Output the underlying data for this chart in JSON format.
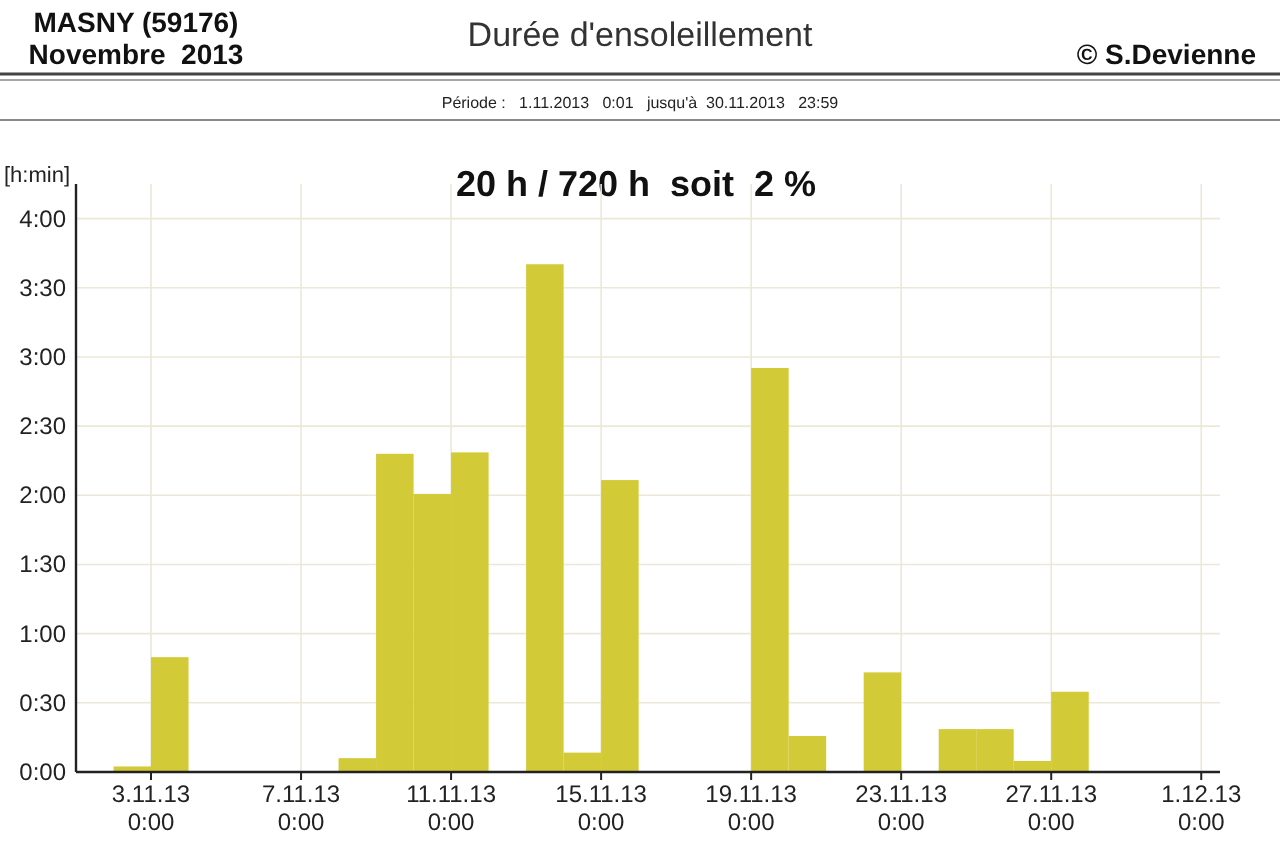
{
  "chart_data": {
    "type": "bar",
    "title": "Durée d'ensoleillement",
    "subtitle": "Période :   1.11.2013   0:01   jusqu'à  30.11.2013   23:59",
    "ylabel": "[h:min]",
    "annotations": [
      "MASNY (59176)",
      "Novembre  2013",
      "© S.Devienne",
      "20 h / 720 h  soit  2 %"
    ],
    "x": [
      "2013-11-01T12:00",
      "2013-11-02T12:00",
      "2013-11-03T12:00",
      "2013-11-04T12:00",
      "2013-11-05T12:00",
      "2013-11-06T12:00",
      "2013-11-07T12:00",
      "2013-11-08T12:00",
      "2013-11-09T12:00",
      "2013-11-10T12:00",
      "2013-11-11T12:00",
      "2013-11-12T12:00",
      "2013-11-13T12:00",
      "2013-11-14T12:00",
      "2013-11-15T12:00",
      "2013-11-16T12:00",
      "2013-11-17T12:00",
      "2013-11-18T12:00",
      "2013-11-19T12:00",
      "2013-11-20T12:00",
      "2013-11-21T12:00",
      "2013-11-22T12:00",
      "2013-11-23T12:00",
      "2013-11-24T12:00",
      "2013-11-25T12:00",
      "2013-11-26T12:00",
      "2013-11-27T12:00",
      "2013-11-28T12:00",
      "2013-11-29T12:00",
      "2013-11-30T12:00"
    ],
    "values": [
      0,
      0.04,
      0.83,
      0,
      0,
      0,
      0,
      0.1,
      2.3,
      2.01,
      2.31,
      0,
      3.67,
      0.14,
      2.11,
      0,
      0,
      0,
      2.92,
      0.26,
      0,
      0.72,
      0,
      0.31,
      0.31,
      0.08,
      0.58,
      0,
      0,
      0
    ],
    "color": "#d3ca38",
    "xlim": [
      "2013-11-01",
      "2013-12-01T12:00"
    ],
    "xticks": [
      {
        "value": "2013-11-03",
        "label": "3.11.13\n0:00"
      },
      {
        "value": "2013-11-07",
        "label": "7.11.13\n0:00"
      },
      {
        "value": "2013-11-11",
        "label": "11.11.13\n0:00"
      },
      {
        "value": "2013-11-15",
        "label": "15.11.13\n0:00"
      },
      {
        "value": "2013-11-19",
        "label": "19.11.13\n0:00"
      },
      {
        "value": "2013-11-23",
        "label": "23.11.13\n0:00"
      },
      {
        "value": "2013-11-27",
        "label": "27.11.13\n0:00"
      },
      {
        "value": "2013-12-01",
        "label": "1.12.13\n0:00"
      }
    ],
    "ylim": [
      0,
      4.25
    ],
    "yticks": [
      {
        "value": 0,
        "label": "0:00"
      },
      {
        "value": 0.5,
        "label": "0:30"
      },
      {
        "value": 1,
        "label": "1:00"
      },
      {
        "value": 1.5,
        "label": "1:30"
      },
      {
        "value": 2,
        "label": "2:00"
      },
      {
        "value": 2.5,
        "label": "2:30"
      },
      {
        "value": 3,
        "label": "3:00"
      },
      {
        "value": 3.5,
        "label": "3:30"
      },
      {
        "value": 4,
        "label": "4:00"
      }
    ],
    "grid": true
  }
}
